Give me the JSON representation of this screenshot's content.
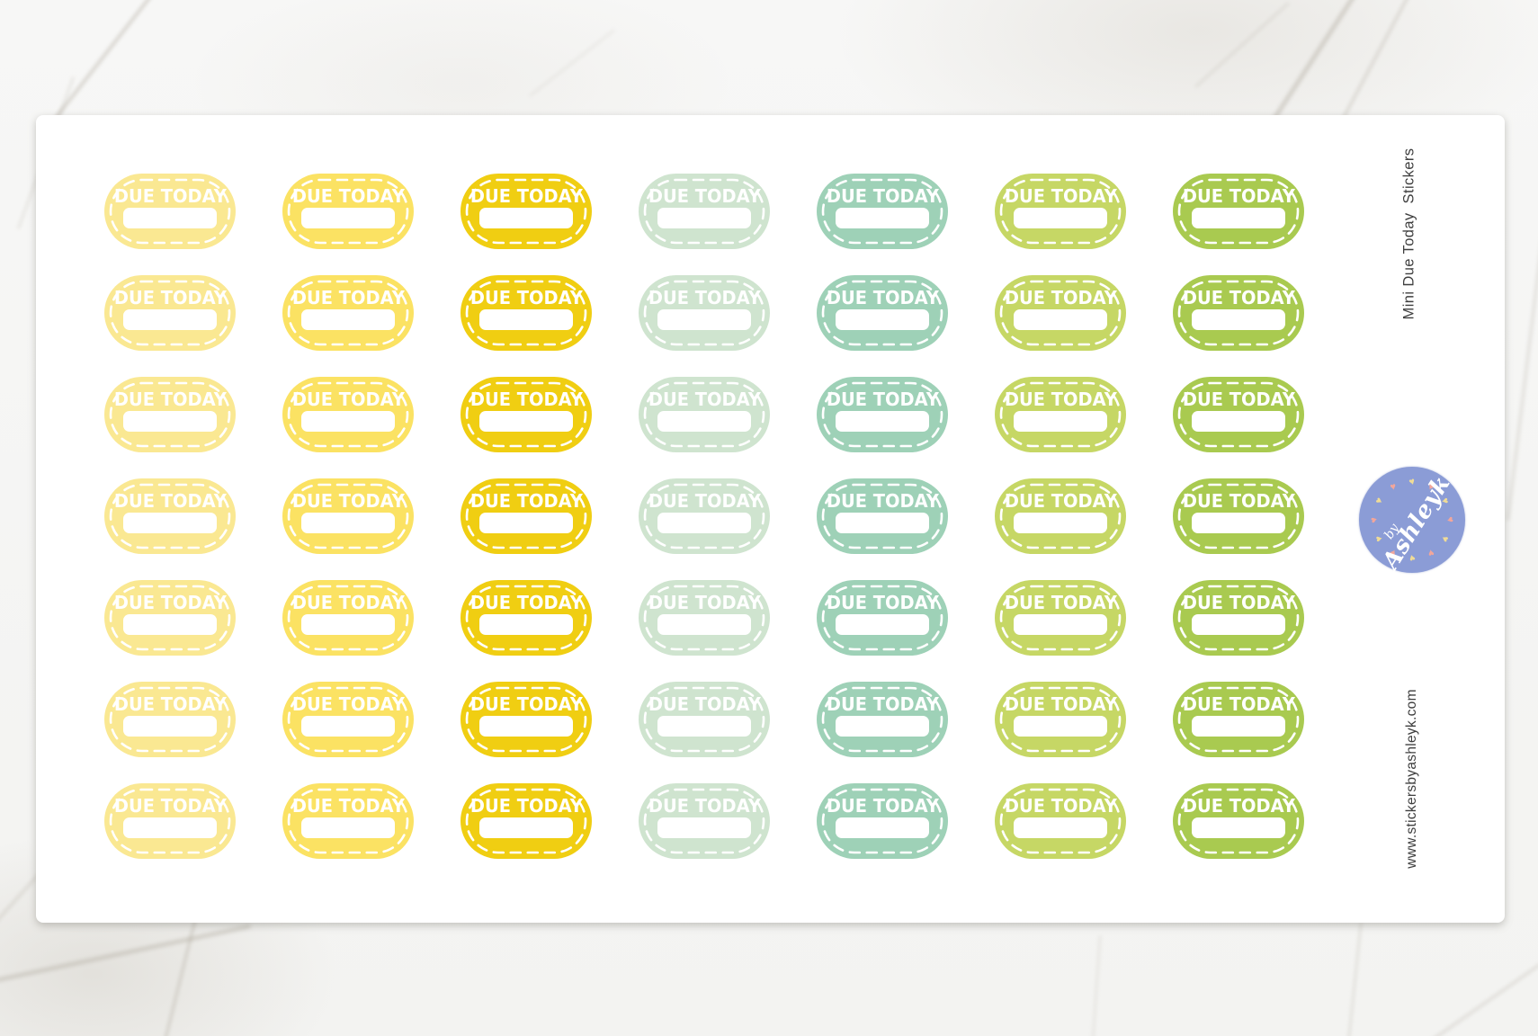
{
  "page": {
    "title_vertical": "Mini Due Today  Stickers",
    "website_vertical": "www.stickersbyashleyk.com",
    "background": "white-marble",
    "sheet_color": "#FFFFFF",
    "side_text_color": "#3E3E3E"
  },
  "sheet": {
    "sticker_label": "DUE TODAY",
    "rows": 7,
    "columns": [
      {
        "name": "pale-yellow",
        "color": "#FAE892"
      },
      {
        "name": "yellow",
        "color": "#FBE263"
      },
      {
        "name": "golden-yellow",
        "color": "#F0CE12"
      },
      {
        "name": "pale-mint",
        "color": "#CFE4CF"
      },
      {
        "name": "seafoam-teal",
        "color": "#9ED1B7"
      },
      {
        "name": "lime-green",
        "color": "#C6D765"
      },
      {
        "name": "olive-green",
        "color": "#A9CA50"
      }
    ]
  },
  "logo": {
    "line1": "by",
    "line2": "Ashleyk",
    "circle_color": "#8B9CD6",
    "heart_colors": [
      "#F0DC96",
      "#F2A69B"
    ],
    "heart_count": 12
  },
  "icons": {
    "heart": "♥"
  }
}
